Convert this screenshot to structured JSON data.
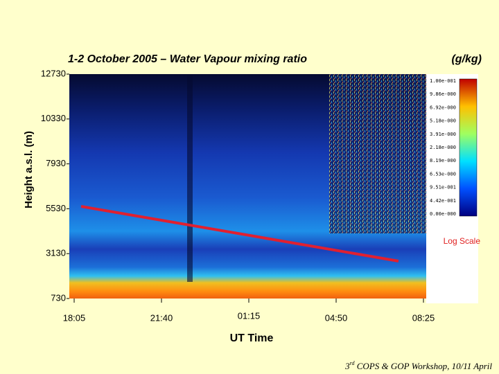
{
  "chart_data": {
    "type": "heatmap",
    "title": "1-2 October 2005 – Water Vapour mixing ratio",
    "units": "(g/kg)",
    "ylabel": "Height a.s.l. (m)",
    "xlabel": "UT Time",
    "ylim": [
      730,
      12730
    ],
    "yticks": [
      730,
      3130,
      5530,
      7930,
      10330,
      12730
    ],
    "categories": [
      "18:05",
      "21:40",
      "01:15",
      "04:50",
      "08:25"
    ],
    "colorbar_labels": [
      "1.00e-001",
      "9.86e-000",
      "6.92e-000",
      "5.18e-000",
      "3.91e-000",
      "2.18e-000",
      "8.19e-000",
      "6.53e-000",
      "9.51e-001",
      "4.42e-001",
      "0.00e-000"
    ],
    "colorbar_note": "Log Scale"
  },
  "footer": {
    "number": "3",
    "suffix": "rd",
    "text": " COPS & GOP Workshop, 10/11 April"
  }
}
